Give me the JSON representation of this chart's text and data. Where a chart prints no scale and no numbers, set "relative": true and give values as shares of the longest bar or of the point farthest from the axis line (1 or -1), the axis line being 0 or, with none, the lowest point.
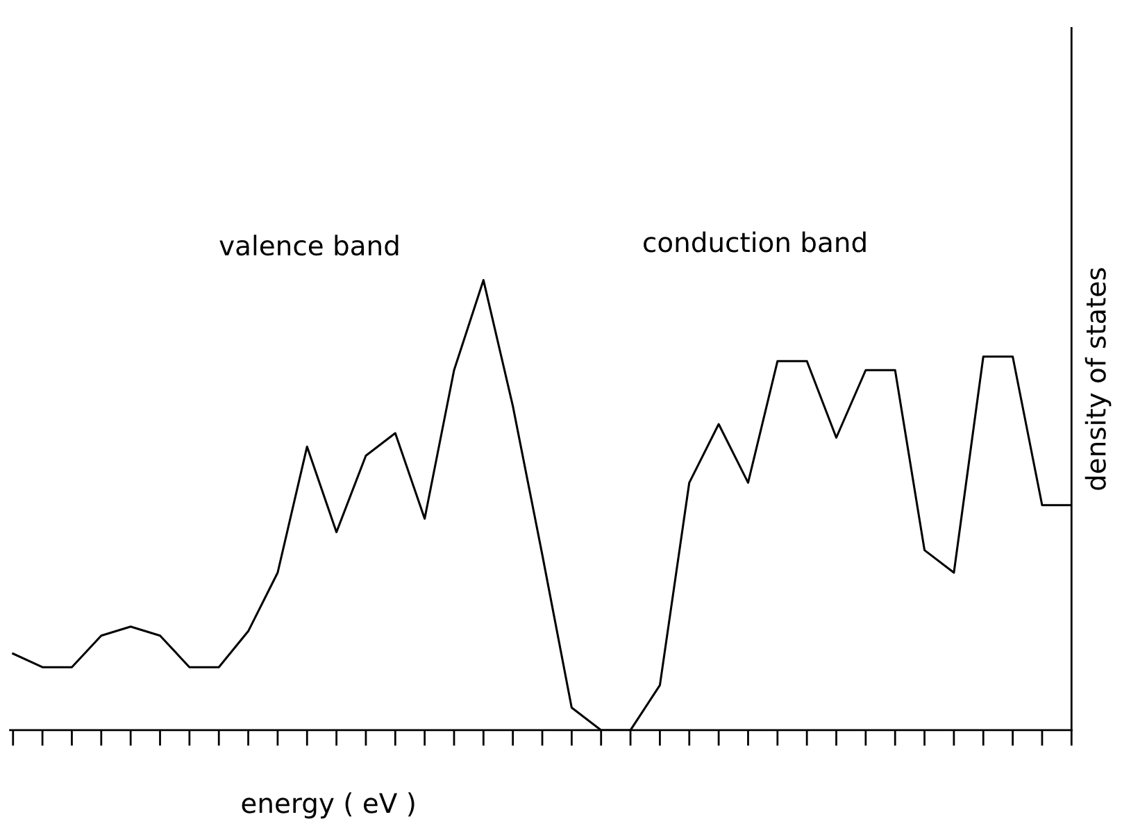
{
  "chart_data": {
    "type": "line",
    "relative": true,
    "xlabel": "energy ( eV )",
    "ylabel": "density of states",
    "categories": [
      null,
      null,
      null,
      null,
      null,
      null,
      null,
      null,
      null,
      null,
      null,
      null,
      null,
      null,
      null,
      null,
      null,
      null,
      null,
      null,
      null,
      null,
      null,
      null,
      null,
      null,
      null,
      null,
      null,
      null,
      null,
      null,
      null,
      null,
      null,
      null,
      null
    ],
    "series": [
      {
        "color": "#000000",
        "values": [
          0.17,
          0.14,
          0.14,
          0.21,
          0.23,
          0.21,
          0.14,
          0.14,
          0.22,
          0.35,
          0.63,
          0.44,
          0.61,
          0.66,
          0.47,
          0.8,
          1.0,
          0.72,
          0.39,
          0.05,
          0.0,
          0.0,
          0.1,
          0.55,
          0.68,
          0.55,
          0.82,
          0.82,
          0.65,
          0.8,
          0.8,
          0.4,
          0.35,
          0.83,
          0.83,
          0.5,
          0.5
        ]
      }
    ],
    "annotations": [
      "valence band",
      "conduction band"
    ],
    "grid": false,
    "legend": false,
    "marker": "none",
    "line_style": "solid"
  }
}
